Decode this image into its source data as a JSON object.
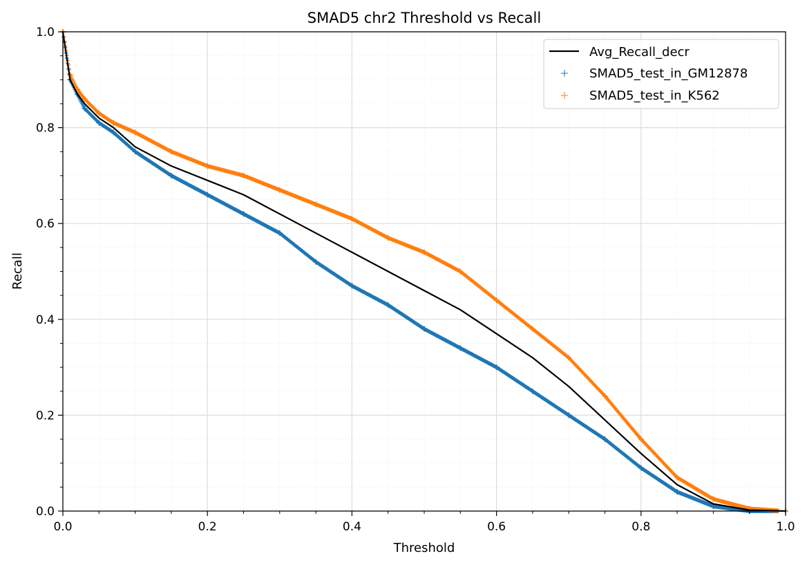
{
  "chart_data": {
    "type": "line",
    "title": "SMAD5 chr2 Threshold vs Recall",
    "xlabel": "Threshold",
    "ylabel": "Recall",
    "xlim": [
      0,
      1
    ],
    "ylim": [
      0,
      1
    ],
    "xticks": [
      "0.0",
      "0.2",
      "0.4",
      "0.6",
      "0.8",
      "1.0"
    ],
    "yticks": [
      "0.0",
      "0.2",
      "0.4",
      "0.6",
      "0.8",
      "1.0"
    ],
    "grid": true,
    "legend_position": "top-right",
    "series": [
      {
        "name": "Avg_Recall_decr",
        "kind": "line",
        "color": "#000000",
        "x": [
          0.0,
          0.01,
          0.02,
          0.03,
          0.05,
          0.07,
          0.1,
          0.15,
          0.2,
          0.25,
          0.3,
          0.35,
          0.4,
          0.45,
          0.5,
          0.55,
          0.6,
          0.65,
          0.7,
          0.75,
          0.8,
          0.85,
          0.9,
          0.95,
          1.0
        ],
        "y": [
          1.0,
          0.9,
          0.87,
          0.85,
          0.82,
          0.8,
          0.76,
          0.72,
          0.69,
          0.66,
          0.62,
          0.58,
          0.54,
          0.5,
          0.46,
          0.42,
          0.37,
          0.32,
          0.26,
          0.19,
          0.12,
          0.055,
          0.015,
          0.002,
          0.0
        ]
      },
      {
        "name": "SMAD5_test_in_GM12878",
        "kind": "scatter",
        "marker": "+",
        "color": "#1f77b4",
        "x": [
          0.0,
          0.01,
          0.02,
          0.03,
          0.05,
          0.07,
          0.1,
          0.15,
          0.2,
          0.25,
          0.3,
          0.35,
          0.4,
          0.45,
          0.5,
          0.55,
          0.6,
          0.65,
          0.7,
          0.75,
          0.8,
          0.85,
          0.9,
          0.95,
          1.0
        ],
        "y": [
          1.0,
          0.9,
          0.87,
          0.84,
          0.81,
          0.79,
          0.75,
          0.7,
          0.66,
          0.62,
          0.58,
          0.52,
          0.47,
          0.43,
          0.38,
          0.34,
          0.3,
          0.25,
          0.2,
          0.15,
          0.09,
          0.04,
          0.01,
          0.0,
          0.0
        ]
      },
      {
        "name": "SMAD5_test_in_K562",
        "kind": "scatter",
        "marker": "+",
        "color": "#ff7f0e",
        "x": [
          0.0,
          0.01,
          0.02,
          0.03,
          0.05,
          0.07,
          0.1,
          0.15,
          0.2,
          0.25,
          0.3,
          0.35,
          0.4,
          0.45,
          0.5,
          0.55,
          0.6,
          0.65,
          0.7,
          0.75,
          0.8,
          0.85,
          0.9,
          0.95,
          1.0
        ],
        "y": [
          1.0,
          0.91,
          0.88,
          0.86,
          0.83,
          0.81,
          0.79,
          0.75,
          0.72,
          0.7,
          0.67,
          0.64,
          0.61,
          0.57,
          0.54,
          0.5,
          0.44,
          0.38,
          0.32,
          0.24,
          0.15,
          0.07,
          0.025,
          0.005,
          0.0
        ]
      }
    ]
  }
}
